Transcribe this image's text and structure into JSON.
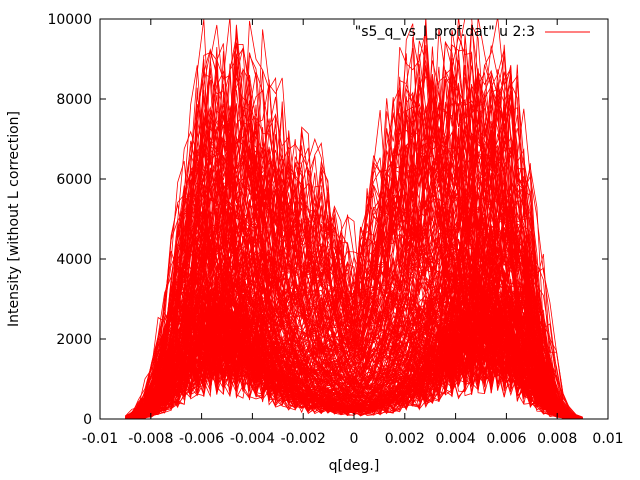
{
  "chart_data": {
    "type": "line",
    "title": "",
    "xlabel": "q[deg.]",
    "ylabel": "Intensity [without L correction]",
    "xlim": [
      -0.01,
      0.01
    ],
    "ylim": [
      0,
      10000
    ],
    "xticks": [
      -0.01,
      -0.008,
      -0.006,
      -0.004,
      -0.002,
      0,
      0.002,
      0.004,
      0.006,
      0.008,
      0.01
    ],
    "xtick_labels": [
      "-0.01",
      "-0.008",
      "-0.006",
      "-0.004",
      "-0.002",
      "0",
      "0.002",
      "0.004",
      "0.006",
      "0.008",
      "0.01"
    ],
    "yticks": [
      0,
      2000,
      4000,
      6000,
      8000,
      10000
    ],
    "ytick_labels": [
      "0",
      "2000",
      "4000",
      "6000",
      "8000",
      "10000"
    ],
    "grid": false,
    "legend_position": "top-right",
    "series": [
      {
        "name": "\"s5_q_vs_I_prof.dat\" u 2:3",
        "color": "#ff0000",
        "profile_x": [
          -0.009,
          -0.0085,
          -0.008,
          -0.0075,
          -0.007,
          -0.0065,
          -0.006,
          -0.0055,
          -0.005,
          -0.0045,
          -0.004,
          -0.0035,
          -0.003,
          -0.0025,
          -0.002,
          -0.0015,
          -0.001,
          -0.0005,
          0.0,
          0.0005,
          0.001,
          0.0015,
          0.002,
          0.0025,
          0.003,
          0.0035,
          0.004,
          0.0045,
          0.005,
          0.0055,
          0.006,
          0.0065,
          0.007,
          0.0075,
          0.008,
          0.0085,
          0.009
        ],
        "typical_y": [
          0,
          60,
          250,
          600,
          1200,
          1700,
          2100,
          2300,
          2200,
          2000,
          1700,
          1400,
          1100,
          850,
          650,
          500,
          400,
          320,
          280,
          320,
          420,
          550,
          750,
          1000,
          1300,
          1650,
          2000,
          2300,
          2450,
          2350,
          2100,
          1700,
          1150,
          550,
          180,
          40,
          0
        ],
        "envelope_y": [
          0,
          200,
          900,
          2500,
          4800,
          7500,
          10000,
          10000,
          10000,
          10000,
          10000,
          9000,
          8000,
          7600,
          7200,
          6500,
          6000,
          5000,
          4000,
          5500,
          7000,
          8500,
          9500,
          10000,
          10000,
          10000,
          10000,
          10000,
          10000,
          10000,
          10000,
          8500,
          5500,
          2500,
          600,
          100,
          0
        ]
      }
    ]
  }
}
